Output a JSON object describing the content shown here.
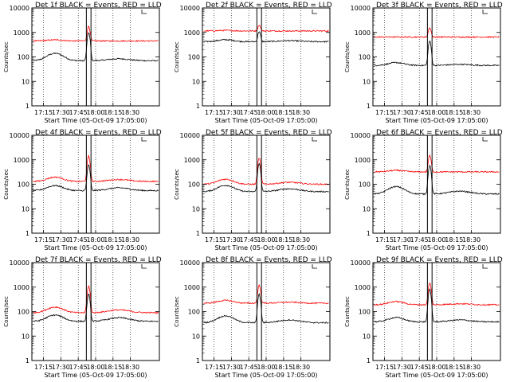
{
  "figure": {
    "background": "#ffffff",
    "event_color": "#000000",
    "lld_color": "#ff0000"
  },
  "chart_data": [
    {
      "type": "line",
      "title": "Det 1f BLACK = Events, RED = LLD",
      "xlabel": "Start Time (05-Oct-09 17:05:00)",
      "ylabel": "Counts/sec",
      "yscale": "log",
      "ylim": [
        1,
        10000
      ],
      "xlim_minutes": [
        17.05,
        18.55
      ],
      "xticks": [
        "17:15",
        "17:30",
        "17:45",
        "18:00",
        "18:15",
        "18:30"
      ],
      "yticks": [
        "1",
        "10",
        "100",
        "1000",
        "10000"
      ],
      "grid": "vertical-dotted",
      "interval_lines": [
        "17:52",
        "17:56"
      ],
      "series": [
        {
          "name": "Events",
          "color": "#000000",
          "base": 70,
          "hump": 2,
          "hump2": 1.2,
          "peak": 1000
        },
        {
          "name": "LLD",
          "color": "#ff0000",
          "base": 450,
          "hump": 1.1,
          "hump2": 1.0,
          "peak": 1800
        }
      ]
    },
    {
      "type": "line",
      "title": "Det 2f BLACK = Events, RED = LLD",
      "xlabel": "Start Time (05-Oct-09 17:05:00)",
      "ylabel": "Counts/sec",
      "yscale": "log",
      "ylim": [
        1,
        10000
      ],
      "xticks": [
        "17:15",
        "17:30",
        "17:45",
        "18:00",
        "18:15",
        "18:30"
      ],
      "yticks": [
        "1",
        "10",
        "100",
        "1000",
        "10000"
      ],
      "grid": "vertical-dotted",
      "interval_lines": [
        "17:52",
        "17:56"
      ],
      "series": [
        {
          "name": "Events",
          "color": "#000000",
          "base": 420,
          "hump": 1.2,
          "hump2": 1.1,
          "peak": 1100
        },
        {
          "name": "LLD",
          "color": "#ff0000",
          "base": 1150,
          "hump": 1.05,
          "hump2": 1.0,
          "peak": 2000
        }
      ]
    },
    {
      "type": "line",
      "title": "Det 3f BLACK = Events, RED = LLD",
      "xlabel": "Start Time (05-Oct-09 17:05:00)",
      "ylabel": "Counts/sec",
      "yscale": "log",
      "ylim": [
        1,
        10000
      ],
      "xticks": [
        "17:15",
        "17:30",
        "17:45",
        "18:00",
        "18:15",
        "18:30"
      ],
      "yticks": [
        "1",
        "10",
        "100",
        "1000",
        "10000"
      ],
      "grid": "vertical-dotted",
      "interval_lines": [
        "17:52",
        "17:56"
      ],
      "series": [
        {
          "name": "Events",
          "color": "#000000",
          "base": 45,
          "hump": 1.3,
          "hump2": 1.1,
          "peak": 450
        },
        {
          "name": "LLD",
          "color": "#ff0000",
          "base": 650,
          "hump": 1.0,
          "hump2": 1.0,
          "peak": 1600
        }
      ]
    },
    {
      "type": "line",
      "title": "Det 4f BLACK = Events, RED = LLD",
      "xlabel": "Start Time (05-Oct-09 17:05:00)",
      "ylabel": "Counts/sec",
      "yscale": "log",
      "ylim": [
        1,
        10000
      ],
      "xticks": [
        "17:15",
        "17:30",
        "17:45",
        "18:00",
        "18:15",
        "18:30"
      ],
      "yticks": [
        "1",
        "10",
        "100",
        "1000",
        "10000"
      ],
      "grid": "vertical-dotted",
      "interval_lines": [
        "17:52",
        "17:56"
      ],
      "series": [
        {
          "name": "Events",
          "color": "#000000",
          "base": 55,
          "hump": 1.6,
          "hump2": 1.3,
          "peak": 600
        },
        {
          "name": "LLD",
          "color": "#ff0000",
          "base": 130,
          "hump": 1.5,
          "hump2": 1.2,
          "peak": 1400
        }
      ]
    },
    {
      "type": "line",
      "title": "Det 5f BLACK = Events, RED = LLD",
      "xlabel": "Start Time (05-Oct-09 17:05:00)",
      "ylabel": "Counts/sec",
      "yscale": "log",
      "ylim": [
        1,
        10000
      ],
      "xticks": [
        "17:15",
        "17:30",
        "17:45",
        "18:00",
        "18:15",
        "18:30"
      ],
      "yticks": [
        "1",
        "10",
        "100",
        "1000",
        "10000"
      ],
      "grid": "vertical-dotted",
      "interval_lines": [
        "17:52",
        "17:56"
      ],
      "series": [
        {
          "name": "Events",
          "color": "#000000",
          "base": 50,
          "hump": 1.8,
          "hump2": 1.3,
          "peak": 700
        },
        {
          "name": "LLD",
          "color": "#ff0000",
          "base": 100,
          "hump": 1.6,
          "hump2": 1.2,
          "peak": 1200
        }
      ]
    },
    {
      "type": "line",
      "title": "Det 6f BLACK = Events, RED = LLD",
      "xlabel": "Start Time (05-Oct-09 17:05:00)",
      "ylabel": "Counts/sec",
      "yscale": "log",
      "ylim": [
        1,
        10000
      ],
      "xticks": [
        "17:15",
        "17:30",
        "17:45",
        "18:00",
        "18:15",
        "18:30"
      ],
      "yticks": [
        "1",
        "10",
        "100",
        "1000",
        "10000"
      ],
      "grid": "vertical-dotted",
      "interval_lines": [
        "17:52",
        "17:56"
      ],
      "series": [
        {
          "name": "Events",
          "color": "#000000",
          "base": 40,
          "hump": 2.0,
          "hump2": 1.3,
          "peak": 600
        },
        {
          "name": "LLD",
          "color": "#ff0000",
          "base": 320,
          "hump": 1.15,
          "hump2": 1.0,
          "peak": 1500
        }
      ]
    },
    {
      "type": "line",
      "title": "Det 7f BLACK = Events, RED = LLD",
      "xlabel": "Start Time (05-Oct-09 17:05:00)",
      "ylabel": "Counts/sec",
      "yscale": "log",
      "ylim": [
        1,
        10000
      ],
      "xticks": [
        "17:15",
        "17:30",
        "17:45",
        "18:00",
        "18:15",
        "18:30"
      ],
      "yticks": [
        "1",
        "10",
        "100",
        "1000",
        "10000"
      ],
      "grid": "vertical-dotted",
      "interval_lines": [
        "17:52",
        "17:56"
      ],
      "series": [
        {
          "name": "Events",
          "color": "#000000",
          "base": 40,
          "hump": 1.8,
          "hump2": 1.4,
          "peak": 500
        },
        {
          "name": "LLD",
          "color": "#ff0000",
          "base": 90,
          "hump": 1.7,
          "hump2": 1.3,
          "peak": 1100
        }
      ]
    },
    {
      "type": "line",
      "title": "Det 8f BLACK = Events, RED = LLD",
      "xlabel": "Start Time (05-Oct-09 17:05:00)",
      "ylabel": "Counts/sec",
      "yscale": "log",
      "ylim": [
        1,
        10000
      ],
      "xticks": [
        "17:15",
        "17:30",
        "17:45",
        "18:00",
        "18:15",
        "18:30"
      ],
      "yticks": [
        "1",
        "10",
        "100",
        "1000",
        "10000"
      ],
      "grid": "vertical-dotted",
      "interval_lines": [
        "17:52",
        "17:56"
      ],
      "series": [
        {
          "name": "Events",
          "color": "#000000",
          "base": 35,
          "hump": 1.9,
          "hump2": 1.3,
          "peak": 500
        },
        {
          "name": "LLD",
          "color": "#ff0000",
          "base": 220,
          "hump": 1.3,
          "hump2": 1.1,
          "peak": 1200
        }
      ]
    },
    {
      "type": "line",
      "title": "Det 9f BLACK = Events, RED = LLD",
      "xlabel": "Start Time (05-Oct-09 17:05:00)",
      "ylabel": "Counts/sec",
      "yscale": "log",
      "ylim": [
        1,
        10000
      ],
      "xticks": [
        "17:15",
        "17:30",
        "17:45",
        "18:00",
        "18:15",
        "18:30"
      ],
      "yticks": [
        "1",
        "10",
        "100",
        "1000",
        "10000"
      ],
      "grid": "vertical-dotted",
      "interval_lines": [
        "17:52",
        "17:56"
      ],
      "series": [
        {
          "name": "Events",
          "color": "#000000",
          "base": 38,
          "hump": 1.5,
          "hump2": 1.2,
          "peak": 800
        },
        {
          "name": "LLD",
          "color": "#ff0000",
          "base": 190,
          "hump": 1.35,
          "hump2": 1.1,
          "peak": 1500
        }
      ]
    }
  ]
}
